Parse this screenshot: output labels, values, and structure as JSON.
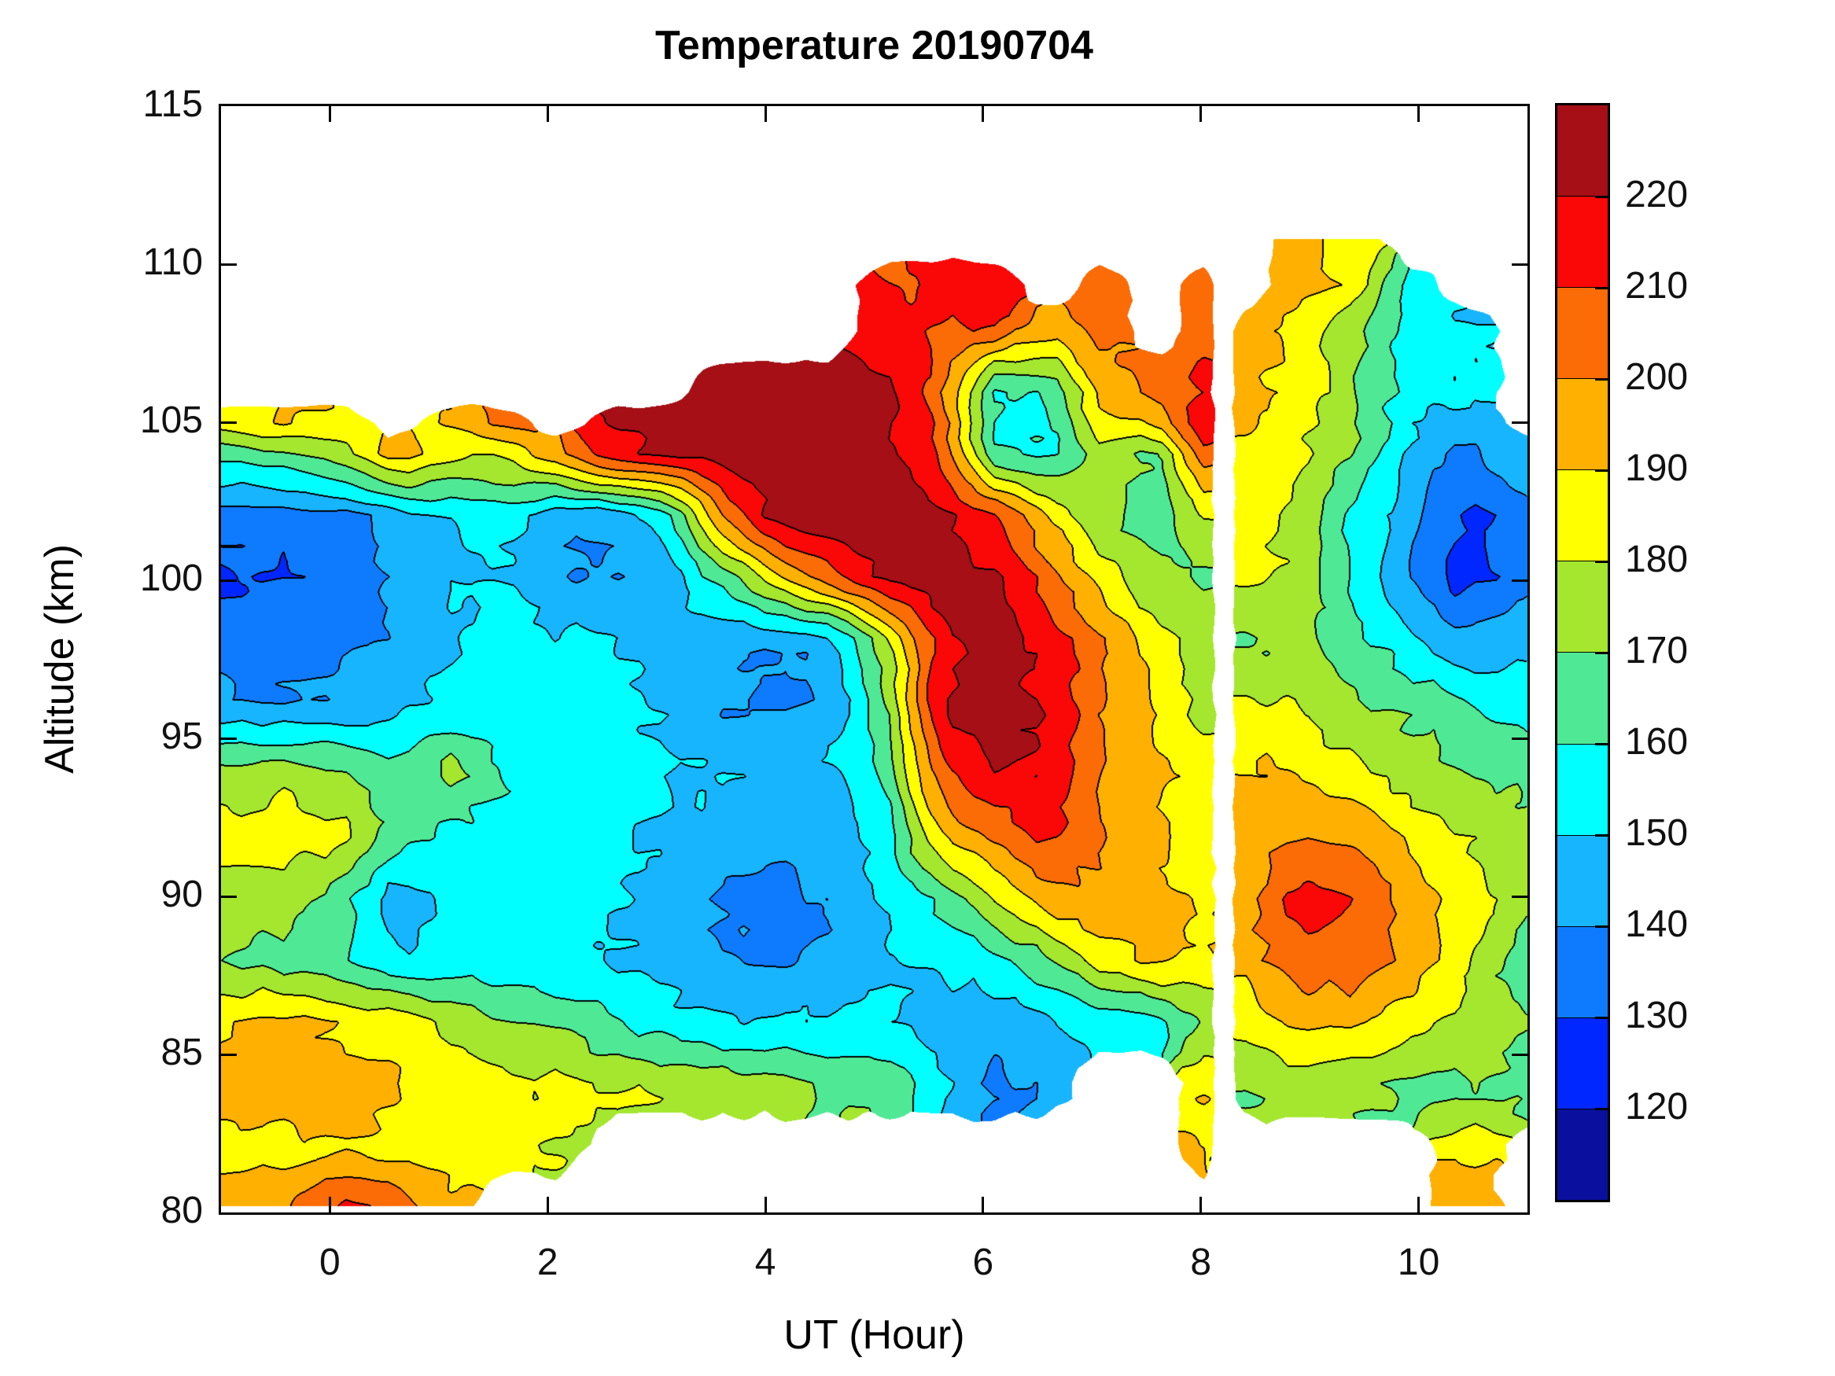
{
  "chart_data": {
    "type": "heatmap",
    "title": "Temperature 20190704",
    "xlabel": "UT (Hour)",
    "ylabel": "Altitude (km)",
    "xlim": [
      -1,
      11
    ],
    "ylim": [
      80,
      115
    ],
    "xticks": [
      0,
      2,
      4,
      6,
      8,
      10
    ],
    "yticks": [
      80,
      85,
      90,
      95,
      100,
      105,
      110,
      115
    ],
    "grid_on": false,
    "colorbar": {
      "ticks": [
        120,
        130,
        140,
        150,
        160,
        170,
        180,
        190,
        200,
        210,
        220
      ],
      "level_min": 110,
      "level_step": 10,
      "n_bands": 12,
      "colors_low_to_high": [
        "#0b0f9e",
        "#0027ff",
        "#0e7bff",
        "#18b5ff",
        "#00ffff",
        "#4fe996",
        "#a4e72e",
        "#ffff00",
        "#ffb000",
        "#fb6b06",
        "#fa0707",
        "#a50f15"
      ]
    },
    "line_color": "#000000",
    "background": "#ffffff",
    "grid": {
      "comment": "Temperature (K) samples; rows ordered top altitude to bottom; null = no data (white)",
      "x": [
        -1.0,
        -0.4,
        0.1,
        0.6,
        1.1,
        1.6,
        2.1,
        2.6,
        3.1,
        3.6,
        4.1,
        4.6,
        5.1,
        5.6,
        6.1,
        6.6,
        7.1,
        7.6,
        8.0,
        8.2,
        8.4,
        8.9,
        9.4,
        9.9,
        10.4,
        11.1
      ],
      "y": [
        110.8,
        109.3,
        108,
        106,
        105,
        104,
        102,
        100,
        98,
        96,
        94,
        92,
        90,
        88,
        86,
        84,
        82,
        80.2
      ],
      "values": [
        [
          null,
          null,
          null,
          null,
          null,
          null,
          null,
          null,
          null,
          null,
          null,
          null,
          null,
          null,
          null,
          null,
          null,
          null,
          null,
          null,
          null,
          193,
          185,
          null,
          null,
          null
        ],
        [
          null,
          null,
          null,
          null,
          null,
          null,
          null,
          null,
          null,
          null,
          null,
          null,
          210,
          212,
          217,
          null,
          207,
          null,
          207,
          null,
          null,
          196,
          187,
          156,
          null,
          null
        ],
        [
          null,
          null,
          null,
          null,
          null,
          null,
          null,
          null,
          null,
          null,
          null,
          null,
          213,
          211,
          209,
          195,
          204,
          null,
          208,
          null,
          196,
          186,
          172,
          158,
          150,
          null
        ],
        [
          null,
          null,
          null,
          null,
          null,
          null,
          null,
          null,
          null,
          225,
          226,
          227,
          222,
          204,
          158,
          160,
          195,
          200,
          212,
          null,
          192,
          186,
          172,
          155,
          152,
          null
        ],
        [
          186,
          190,
          188,
          null,
          190,
          205,
          null,
          220,
          224,
          226,
          228,
          228,
          223,
          207,
          160,
          157,
          186,
          192,
          218,
          null,
          193,
          183,
          172,
          152,
          144,
          null
        ],
        [
          163,
          168,
          175,
          198,
          183,
          182,
          198,
          218,
          222,
          225,
          228,
          228,
          224,
          210,
          162,
          158,
          177,
          168,
          205,
          null,
          190,
          182,
          170,
          150,
          138,
          150
        ],
        [
          134,
          135,
          136,
          144,
          150,
          153,
          142,
          142,
          152,
          200,
          225,
          228,
          226,
          224,
          212,
          190,
          172,
          163,
          180,
          null,
          188,
          176,
          157,
          144,
          127,
          136
        ],
        [
          128,
          130,
          136,
          142,
          148,
          152,
          140,
          140,
          146,
          162,
          185,
          205,
          222,
          226,
          222,
          205,
          185,
          172,
          168,
          null,
          182,
          178,
          160,
          140,
          126,
          137
        ],
        [
          136,
          135,
          138,
          142,
          150,
          155,
          152,
          152,
          146,
          142,
          140,
          143,
          175,
          215,
          225,
          215,
          202,
          185,
          175,
          null,
          168,
          172,
          162,
          155,
          142,
          148
        ],
        [
          142,
          140,
          143,
          148,
          152,
          153,
          155,
          152,
          148,
          140,
          138,
          142,
          168,
          222,
          226,
          220,
          200,
          188,
          176,
          null,
          183,
          180,
          172,
          168,
          162,
          153
        ],
        [
          172,
          175,
          170,
          160,
          176,
          160,
          157,
          154,
          151,
          149,
          148,
          151,
          160,
          208,
          222,
          218,
          198,
          192,
          185,
          null,
          192,
          188,
          182,
          175,
          170,
          166
        ],
        [
          185,
          186,
          183,
          166,
          156,
          156,
          154,
          152,
          149,
          146,
          143,
          142,
          155,
          193,
          203,
          212,
          200,
          192,
          185,
          null,
          192,
          201,
          198,
          188,
          179,
          170
        ],
        [
          178,
          174,
          166,
          143,
          153,
          156,
          154,
          151,
          146,
          139,
          136,
          141,
          152,
          163,
          180,
          198,
          198,
          192,
          187,
          null,
          196,
          214,
          209,
          196,
          186,
          172
        ],
        [
          170,
          166,
          160,
          152,
          152,
          152,
          150,
          149,
          146,
          141,
          137,
          142,
          148,
          151,
          158,
          168,
          186,
          194,
          188,
          null,
          195,
          207,
          207,
          196,
          183,
          158
        ],
        [
          190,
          192,
          190,
          185,
          178,
          172,
          170,
          160,
          155,
          152,
          150,
          152,
          152,
          145,
          142,
          148,
          153,
          155,
          172,
          null,
          183,
          193,
          192,
          186,
          176,
          168
        ],
        [
          193,
          196,
          195,
          192,
          186,
          183,
          181,
          180,
          178,
          175,
          172,
          170,
          168,
          152,
          138,
          142,
          null,
          null,
          188,
          null,
          170,
          174,
          172,
          168,
          168,
          168
        ],
        [
          186,
          187,
          189,
          187,
          184,
          183,
          180,
          null,
          null,
          null,
          null,
          null,
          null,
          null,
          null,
          null,
          null,
          null,
          192,
          null,
          null,
          null,
          null,
          null,
          186,
          null
        ],
        [
          197,
          199,
          213,
          206,
          194,
          null,
          null,
          null,
          null,
          null,
          null,
          null,
          null,
          null,
          null,
          null,
          null,
          null,
          null,
          null,
          null,
          null,
          null,
          null,
          197,
          null
        ]
      ]
    }
  }
}
